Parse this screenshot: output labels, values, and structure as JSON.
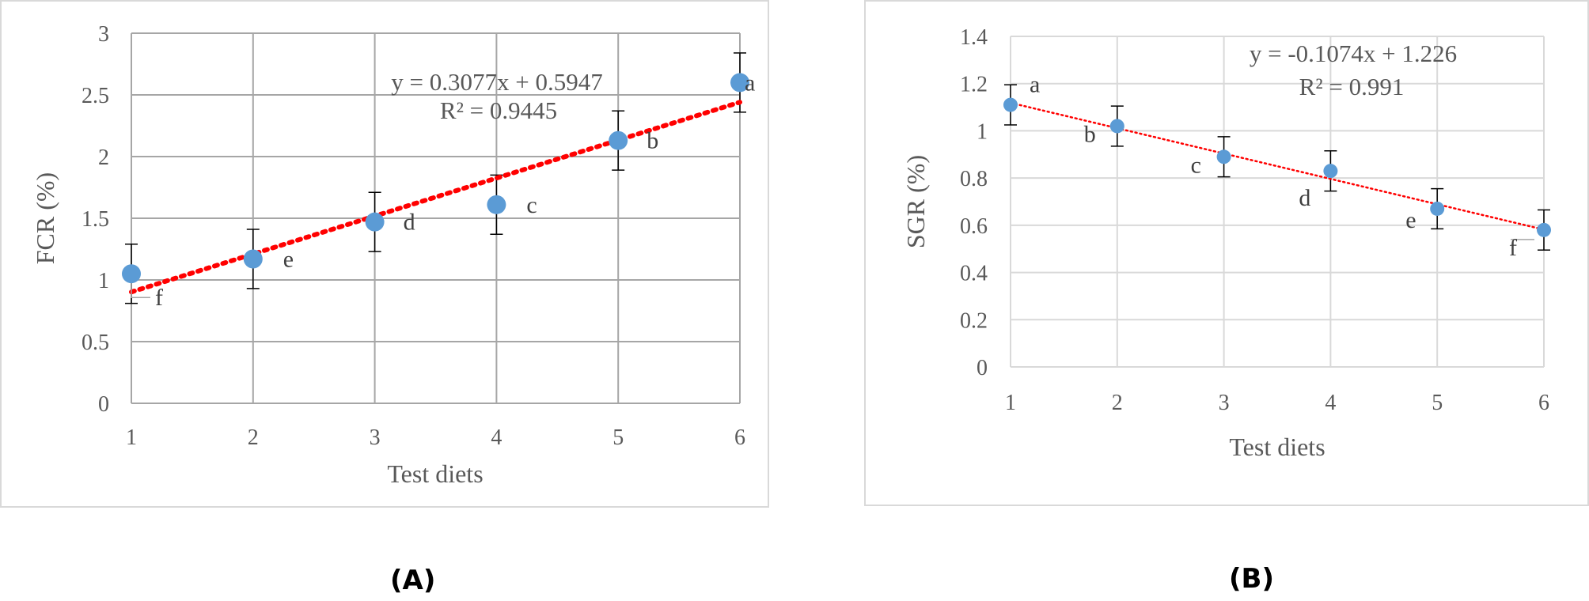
{
  "chart_data": [
    {
      "panel": "A",
      "type": "scatter",
      "xlabel": "Test diets",
      "ylabel": "FCR (%)",
      "xlim": [
        1,
        6
      ],
      "ylim": [
        0,
        3
      ],
      "xticks": [
        "1",
        "2",
        "3",
        "4",
        "5",
        "6"
      ],
      "yticks": [
        "0",
        "0.5",
        "1",
        "1.5",
        "2",
        "2.5",
        "3"
      ],
      "grid": true,
      "x": [
        1,
        2,
        3,
        4,
        5,
        6
      ],
      "values": [
        1.05,
        1.17,
        1.47,
        1.61,
        2.13,
        2.6
      ],
      "error": [
        0.24,
        0.24,
        0.24,
        0.24,
        0.24,
        0.24
      ],
      "letters": [
        "f",
        "e",
        "d",
        "c",
        "b",
        "a"
      ],
      "trendline": {
        "slope": 0.3077,
        "intercept": 0.5947,
        "equation": "y = 0.3077x + 0.5947",
        "r2": "R² = 0.9445",
        "style": "dotted",
        "color": "#ff0000"
      },
      "marker_color": "#5b9bd5",
      "caption": "(A)"
    },
    {
      "panel": "B",
      "type": "scatter",
      "xlabel": "Test diets",
      "ylabel": "SGR (%)",
      "xlim": [
        1,
        6
      ],
      "ylim": [
        0,
        1.4
      ],
      "xticks": [
        "1",
        "2",
        "3",
        "4",
        "5",
        "6"
      ],
      "yticks": [
        "0",
        "0.2",
        "0.4",
        "0.6",
        "0.8",
        "1",
        "1.2",
        "1.4"
      ],
      "grid": true,
      "x": [
        1,
        2,
        3,
        4,
        5,
        6
      ],
      "values": [
        1.11,
        1.02,
        0.89,
        0.83,
        0.67,
        0.58
      ],
      "error": [
        0.085,
        0.085,
        0.085,
        0.085,
        0.085,
        0.085
      ],
      "letters": [
        "a",
        "b",
        "c",
        "d",
        "e",
        "f"
      ],
      "trendline": {
        "slope": -0.1074,
        "intercept": 1.226,
        "equation": "y = -0.1074x + 1.226",
        "r2": "R² = 0.991",
        "style": "dotted",
        "color": "#ff0000"
      },
      "marker_color": "#5b9bd5",
      "caption": "(B)"
    }
  ]
}
